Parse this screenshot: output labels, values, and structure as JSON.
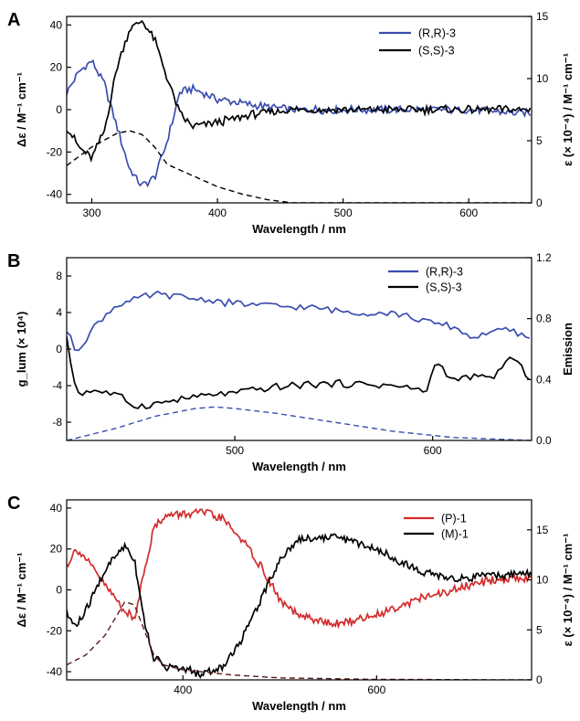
{
  "chart_data": [
    {
      "type": "line",
      "panel_label": "A",
      "xlabel": "Wavelength / nm",
      "ylabel_left": "Δε / M⁻¹ cm⁻¹",
      "ylabel_right": "ε (× 10⁻⁴) / M⁻¹ cm⁻¹",
      "xlim": [
        280,
        650
      ],
      "ylim_left": [
        -44,
        44
      ],
      "ylim_right": [
        0,
        15
      ],
      "x_ticks": [
        300,
        400,
        500,
        600
      ],
      "y_ticks_left": [
        -40,
        -20,
        0,
        20,
        40
      ],
      "y_ticks_right": [
        0,
        5,
        10,
        15
      ],
      "legend_position": "top-right",
      "series": [
        {
          "name": "(R,R)-3",
          "axis": "left",
          "color": "#3a4db0",
          "style": "solid",
          "x": [
            280,
            290,
            300,
            310,
            320,
            330,
            340,
            350,
            360,
            370,
            380,
            400,
            430,
            460,
            500,
            550,
            600,
            650
          ],
          "values": [
            8,
            18,
            23,
            12,
            -8,
            -28,
            -36,
            -32,
            -15,
            8,
            10,
            5,
            2,
            0,
            0,
            0,
            0,
            -2
          ]
        },
        {
          "name": "(S,S)-3",
          "axis": "left",
          "color": "#000000",
          "style": "solid",
          "x": [
            280,
            290,
            300,
            310,
            320,
            330,
            340,
            350,
            360,
            370,
            380,
            400,
            430,
            460,
            500,
            550,
            600,
            650
          ],
          "values": [
            -8,
            -18,
            -23,
            -10,
            20,
            38,
            42,
            33,
            15,
            -2,
            -8,
            -6,
            -2,
            0,
            0,
            0,
            0,
            0
          ]
        },
        {
          "name": "",
          "axis": "right",
          "color": "#000000",
          "style": "dashed",
          "x": [
            280,
            300,
            320,
            330,
            340,
            350,
            360,
            380,
            400,
            420,
            440,
            460,
            650
          ],
          "values": [
            3.0,
            4.5,
            5.6,
            5.8,
            5.5,
            4.5,
            3.1,
            2.2,
            1.3,
            0.7,
            0.25,
            0,
            0
          ]
        }
      ]
    },
    {
      "type": "line",
      "panel_label": "B",
      "xlabel": "Wavelength / nm",
      "ylabel_left": "g_lum (× 10⁴)",
      "ylabel_right": "Emission",
      "xlim": [
        415,
        650
      ],
      "ylim_left": [
        -10,
        10
      ],
      "ylim_right": [
        0,
        1.2
      ],
      "x_ticks": [
        500,
        600
      ],
      "y_ticks_left": [
        -8,
        -4,
        0,
        4,
        8
      ],
      "y_ticks_right": [
        0.0,
        0.4,
        0.8,
        1.2
      ],
      "legend_position": "top-right",
      "series": [
        {
          "name": "(R,R)-3",
          "axis": "left",
          "color": "#3a4db0",
          "style": "solid",
          "x": [
            415,
            420,
            430,
            440,
            460,
            480,
            500,
            520,
            540,
            560,
            580,
            600,
            610,
            620,
            630,
            640,
            650
          ],
          "values": [
            2,
            -0.3,
            2.8,
            4.8,
            6.0,
            5.5,
            5.0,
            4.7,
            4.5,
            4.0,
            4.0,
            2.8,
            2.5,
            1.2,
            2.0,
            2.0,
            1.0
          ]
        },
        {
          "name": "(S,S)-3",
          "axis": "left",
          "color": "#000000",
          "style": "solid",
          "x": [
            415,
            420,
            430,
            440,
            450,
            460,
            480,
            500,
            520,
            540,
            560,
            580,
            597,
            602,
            610,
            620,
            630,
            640,
            650
          ],
          "values": [
            1,
            -4.8,
            -4.5,
            -5.0,
            -6.3,
            -6.0,
            -5.2,
            -4.8,
            -4.2,
            -3.8,
            -3.8,
            -4.0,
            -4.6,
            -1.2,
            -3.5,
            -3.0,
            -3.2,
            -0.8,
            -3.5
          ]
        },
        {
          "name": "",
          "axis": "right",
          "color": "#3a4db0",
          "style": "dashed",
          "x": [
            415,
            440,
            460,
            480,
            490,
            500,
            520,
            550,
            580,
            610,
            650
          ],
          "values": [
            0,
            0.08,
            0.16,
            0.21,
            0.22,
            0.21,
            0.18,
            0.12,
            0.06,
            0.02,
            0
          ]
        }
      ]
    },
    {
      "type": "line",
      "panel_label": "C",
      "xlabel": "Wavelength / nm",
      "ylabel_left": "Δε / M⁻¹ cm⁻¹",
      "ylabel_right": "ε (× 10⁻⁴) / M⁻¹ cm⁻¹",
      "xlim": [
        280,
        760
      ],
      "ylim_left": [
        -44,
        44
      ],
      "ylim_right": [
        0,
        18
      ],
      "x_ticks": [
        400,
        600
      ],
      "y_ticks_left": [
        -40,
        -20,
        0,
        20,
        40
      ],
      "y_ticks_right": [
        0,
        5,
        10,
        15
      ],
      "legend_position": "top-right",
      "series": [
        {
          "name": "(P)-1",
          "axis": "left",
          "color": "#d42a2a",
          "style": "solid",
          "x": [
            280,
            290,
            300,
            320,
            340,
            350,
            360,
            370,
            380,
            420,
            440,
            460,
            480,
            500,
            520,
            560,
            600,
            640,
            680,
            720,
            760
          ],
          "values": [
            12,
            20,
            15,
            2,
            -10,
            -15,
            10,
            30,
            36,
            38,
            35,
            25,
            12,
            -5,
            -13,
            -17,
            -12,
            -5,
            0,
            5,
            6
          ]
        },
        {
          "name": "(M)-1",
          "axis": "left",
          "color": "#000000",
          "style": "solid",
          "x": [
            280,
            290,
            300,
            320,
            340,
            350,
            360,
            370,
            380,
            420,
            440,
            460,
            480,
            500,
            520,
            560,
            600,
            640,
            680,
            720,
            760
          ],
          "values": [
            -12,
            -18,
            -10,
            10,
            22,
            15,
            -15,
            -33,
            -37,
            -41,
            -38,
            -25,
            -5,
            15,
            25,
            26,
            20,
            10,
            5,
            7,
            8
          ]
        },
        {
          "name": "",
          "axis": "right",
          "color": "#5a1a1a",
          "style": "dashed",
          "x": [
            280,
            300,
            320,
            340,
            350,
            360,
            370,
            380,
            400,
            450,
            500,
            600,
            760
          ],
          "values": [
            1.5,
            2.5,
            4.5,
            7.8,
            7.5,
            5.0,
            2.5,
            1.5,
            1.0,
            0.5,
            0.2,
            0.05,
            0
          ]
        }
      ]
    }
  ]
}
